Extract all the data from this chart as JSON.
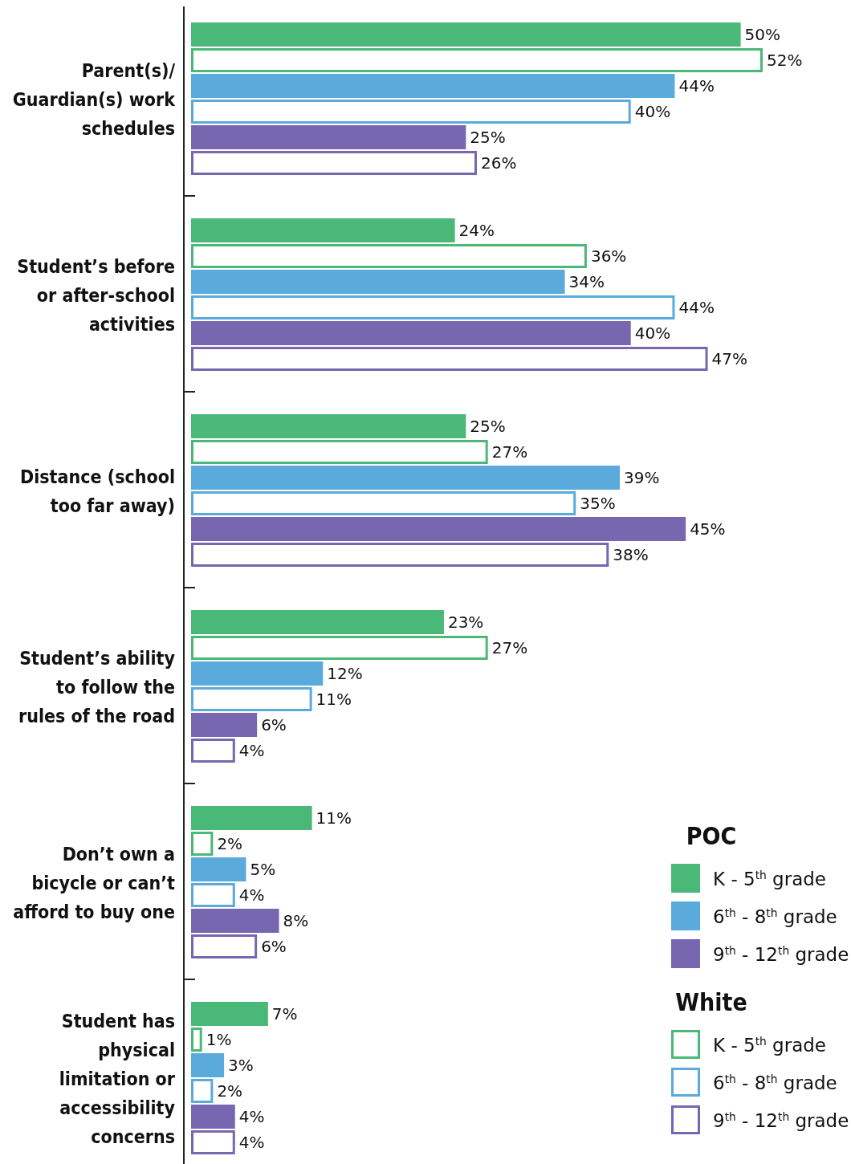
{
  "chart_data": {
    "type": "bar",
    "orientation": "horizontal",
    "categories": [
      "Parent(s)/ Guardian(s) work schedules",
      "Student’s before or after-school activities",
      "Distance (school too far away)",
      "Student’s ability to follow the rules of the road",
      "Don’t own a bicycle or can’t afford to buy one",
      "Student has physical limitation or accessibility concerns"
    ],
    "series": [
      {
        "name": "K - 5$^{th}$ grade",
        "color": "#4ab877",
        "values": [
          50,
          24,
          25,
          23,
          11,
          7
        ],
        "value_labels": [
          "50%",
          "24%",
          "25%",
          "23%",
          "11%",
          "7%"
        ]
      },
      {
        "name": "K - 5$^{th}$ grade",
        "color": "#4ab877",
        "values": [
          52,
          36,
          27,
          27,
          2,
          1
        ],
        "value_labels": [
          "52%",
          "36%",
          "27%",
          "27%",
          "2%",
          "1%"
        ]
      },
      {
        "name": "6$^{th}$ - 8$^{th}$ grade",
        "color": "#5aaadc",
        "values": [
          44,
          34,
          39,
          12,
          5,
          3
        ],
        "value_labels": [
          "44%",
          "34%",
          "39%",
          "12%",
          "5%",
          "3%"
        ]
      },
      {
        "name": "6$^{th}$ - 8$^{th}$ grade",
        "color": "#5aaadc",
        "values": [
          40,
          44,
          35,
          11,
          4,
          2
        ],
        "value_labels": [
          "40%",
          "44%",
          "35%",
          "11%",
          "4%",
          "2%"
        ]
      },
      {
        "name": "9$^{th}$ - 12$^{th}$ grade",
        "color": "#7766b0",
        "values": [
          25,
          40,
          45,
          6,
          8,
          4
        ],
        "value_labels": [
          "25%",
          "40%",
          "45%",
          "6%",
          "8%",
          "4%"
        ]
      },
      {
        "name": "9$^{th}$ - 12$^{th}$ grade",
        "color": "#7766b0",
        "values": [
          26,
          47,
          38,
          4,
          6,
          4
        ],
        "value_labels": [
          "26%",
          "47%",
          "38%",
          "4%",
          "6%",
          "4%"
        ]
      }
    ],
    "annotations": [
      "POC",
      "White"
    ],
    "legend": "bottom right"
  }
}
